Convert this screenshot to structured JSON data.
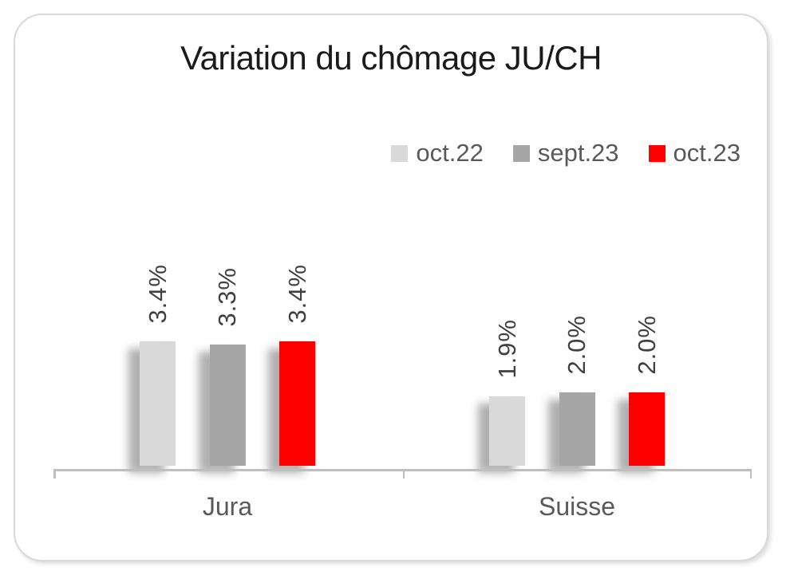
{
  "chart_data": {
    "type": "bar",
    "title": "Variation du chômage JU/CH",
    "categories": [
      "Jura",
      "Suisse"
    ],
    "series": [
      {
        "name": "oct.22",
        "color": "#d9d9d9",
        "values": [
          3.4,
          1.9
        ],
        "labels": [
          "3.4%",
          "1.9%"
        ]
      },
      {
        "name": "sept.23",
        "color": "#a6a6a6",
        "values": [
          3.3,
          2.0
        ],
        "labels": [
          "3.3%",
          "2.0%"
        ]
      },
      {
        "name": "oct.23",
        "color": "#ff0000",
        "values": [
          3.4,
          2.0
        ],
        "labels": [
          "3.4%",
          "2.0%"
        ]
      }
    ],
    "unit": "%",
    "ylim": [
      0,
      3.8
    ],
    "grid": false,
    "legend_position": "top-right",
    "data_label_rotation": -90
  },
  "colors": {
    "title_text": "#1a1a1a",
    "legend_text": "#595959",
    "category_text": "#595959",
    "data_label_text": "#404040",
    "axis": "#bfbfbf"
  }
}
